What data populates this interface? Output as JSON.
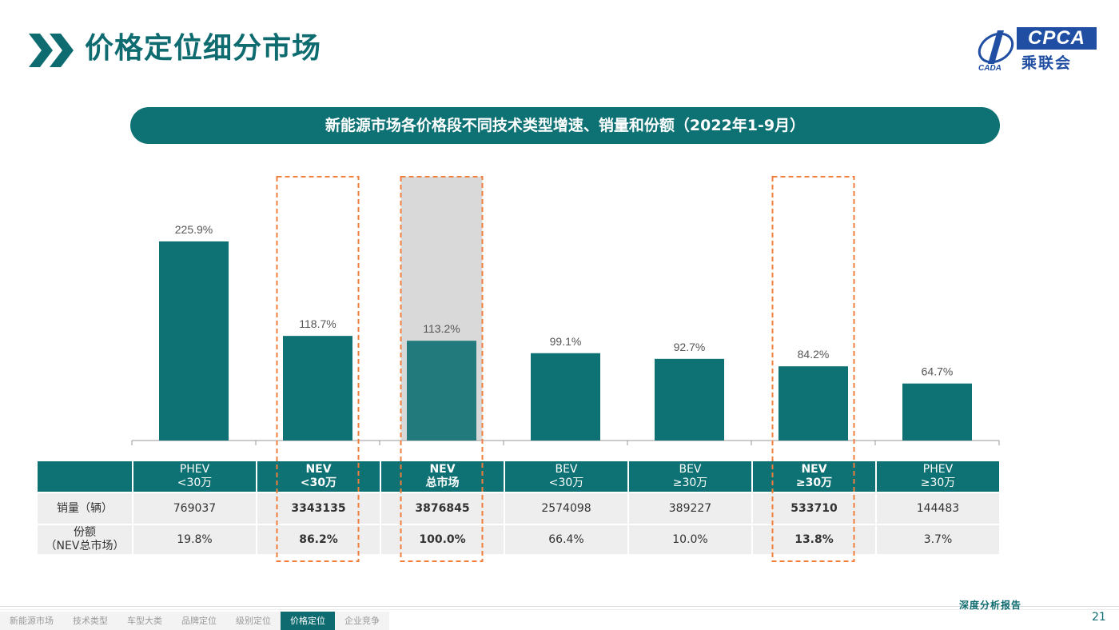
{
  "header": {
    "title": "价格定位细分市场",
    "logo_brand": "CPCA",
    "logo_cn": "乘联会",
    "logo_mark": "CADA"
  },
  "banner": {
    "text": "新能源市场各价格段不同技术类型增速、销量和份额（2022年1-9月）"
  },
  "chart_data": {
    "type": "bar",
    "title": "新能源市场各价格段不同技术类型增速、销量和份额（2022年1-9月）",
    "categories": [
      "PHEV <30万",
      "NEV <30万",
      "NEV 总市场",
      "BEV <30万",
      "BEV ≥30万",
      "NEV ≥30万",
      "PHEV ≥30万"
    ],
    "values": [
      225.9,
      118.7,
      113.2,
      99.1,
      92.7,
      84.2,
      64.7
    ],
    "value_labels": [
      "225.9%",
      "118.7%",
      "113.2%",
      "99.1%",
      "92.7%",
      "84.2%",
      "64.7%"
    ],
    "ylim": [
      0,
      260
    ],
    "highlighted": [
      1,
      2,
      5
    ],
    "shaded": [
      2
    ],
    "bar_color": "#0e7173",
    "highlight_color": "#f07f3c"
  },
  "table": {
    "headers": [
      {
        "line1": "PHEV",
        "line2": "<30万",
        "bold": false
      },
      {
        "line1": "NEV",
        "line2": "<30万",
        "bold": true
      },
      {
        "line1": "NEV",
        "line2": "总市场",
        "bold": true
      },
      {
        "line1": "BEV",
        "line2": "<30万",
        "bold": false
      },
      {
        "line1": "BEV",
        "line2": "≥30万",
        "bold": false
      },
      {
        "line1": "NEV",
        "line2": "≥30万",
        "bold": true
      },
      {
        "line1": "PHEV",
        "line2": "≥30万",
        "bold": false
      }
    ],
    "rows": [
      {
        "label": "销量（辆）",
        "values": [
          "769037",
          "3343135",
          "3876845",
          "2574098",
          "389227",
          "533710",
          "144483"
        ]
      },
      {
        "label": "份额（NEV总市场）",
        "label_line1": "份额",
        "label_line2": "（NEV总市场）",
        "values": [
          "19.8%",
          "86.2%",
          "100.0%",
          "66.4%",
          "10.0%",
          "13.8%",
          "3.7%"
        ]
      }
    ]
  },
  "footer": {
    "report_label": "深度分析报告",
    "nav": [
      "新能源市场",
      "技术类型",
      "车型大类",
      "品牌定位",
      "级别定位",
      "价格定位",
      "企业竞争"
    ],
    "active_nav": 5,
    "page_number": "21"
  },
  "colors": {
    "teal": "#0e7173",
    "orange": "#f07f3c",
    "gray_fill": "#d9d9d9"
  }
}
